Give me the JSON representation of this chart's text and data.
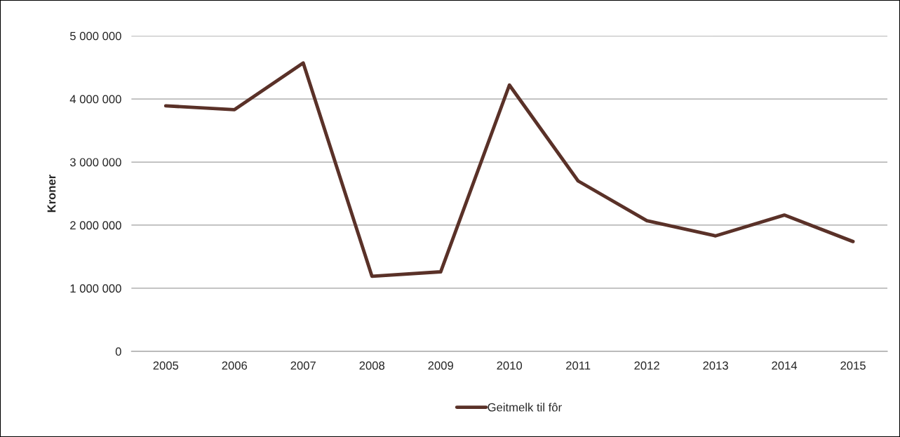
{
  "chart_data": {
    "type": "line",
    "ylabel": "Kroner",
    "categories": [
      "2005",
      "2006",
      "2007",
      "2008",
      "2009",
      "2010",
      "2011",
      "2012",
      "2013",
      "2014",
      "2015"
    ],
    "series": [
      {
        "name": "Geitmelk til fôr",
        "color": "#5a3128",
        "values": [
          3890000,
          3830000,
          4570000,
          1190000,
          1260000,
          4220000,
          2700000,
          2070000,
          1830000,
          2160000,
          1740000
        ]
      }
    ],
    "ylim": [
      0,
      5000000
    ],
    "yticks": [
      {
        "value": 0,
        "label": "0"
      },
      {
        "value": 1000000,
        "label": "1 000 000"
      },
      {
        "value": 2000000,
        "label": "2 000 000"
      },
      {
        "value": 3000000,
        "label": "3 000 000"
      },
      {
        "value": 4000000,
        "label": "4 000 000"
      },
      {
        "value": 5000000,
        "label": "5 000 000"
      }
    ],
    "grid": "y",
    "legend": "bottom",
    "marker": "none",
    "line_style": "solid"
  }
}
